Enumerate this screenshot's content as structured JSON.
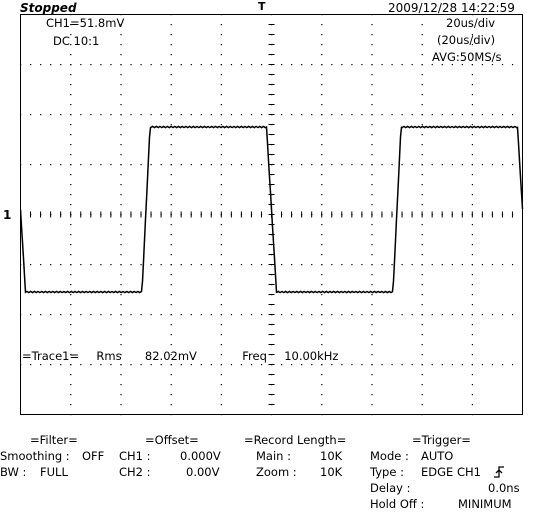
{
  "status": {
    "title": "Stopped",
    "datetime": "2009/12/28  14:22:59",
    "trigger_pos_marker": "T"
  },
  "channel": {
    "scale": "CH1=51.8mV",
    "coupling": "DC  10:1",
    "marker": "1"
  },
  "timebase": {
    "per_div": "20us/div",
    "per_div_paren": "(20us/div)",
    "acq": "AVG:50MS/s"
  },
  "measurement": {
    "label": "=Trace1=",
    "rms_label": "Rms",
    "rms_value": "82.02mV",
    "freq_label": "Freq",
    "freq_value": "10.00kHz"
  },
  "waveform": {
    "type": "square",
    "high_div": 1.75,
    "low_div": -1.55,
    "rise_time_us": 1.6,
    "fall_time_us": 2.0,
    "period_us": 100,
    "rise_at_us": [
      50,
      150
    ],
    "fall_at_us": [
      0,
      100,
      200
    ]
  },
  "grid": {
    "h_divs": 10,
    "v_divs": 8
  },
  "filter": {
    "header": "=Filter=",
    "smoothing_label": "Smoothing :",
    "smoothing_value": "OFF",
    "bw_label": "BW :",
    "bw_value": "FULL"
  },
  "offset": {
    "header": "=Offset=",
    "ch1_label": "CH1 :",
    "ch1_value": "0.000V",
    "ch2_label": "CH2 :",
    "ch2_value": "0.00V"
  },
  "record": {
    "header": "=Record  Length=",
    "main_label": "Main :",
    "main_value": "10K",
    "zoom_label": "Zoom :",
    "zoom_value": "10K"
  },
  "trigger": {
    "header": "=Trigger=",
    "mode_label": "Mode :",
    "mode_value": "AUTO",
    "type_label": "Type :",
    "type_value": "EDGE  CH1",
    "delay_label": "Delay :",
    "delay_value": "0.0ns",
    "holdoff_label": "Hold  Off :",
    "holdoff_value": "MINIMUM"
  }
}
